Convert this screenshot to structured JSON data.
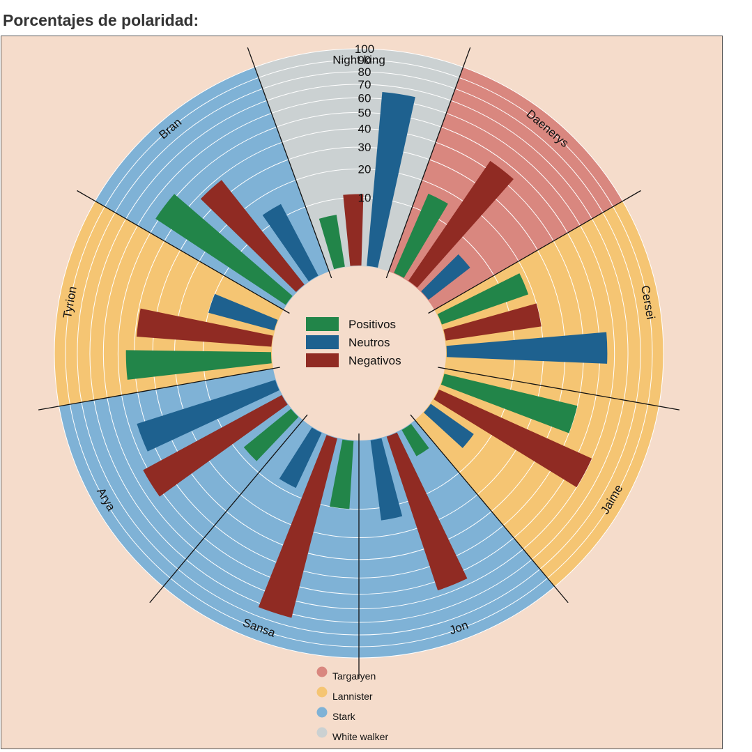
{
  "page_title": "Porcentajes de polaridad:",
  "colors": {
    "background": "#f5dccb",
    "positivos": "#228549",
    "neutros": "#1e618f",
    "negativos": "#902b23",
    "Targaryen": "#d9877f",
    "Lannister": "#f5c573",
    "Stark": "#7fb2d6",
    "White walker": "#cbd1d2"
  },
  "chart_data": {
    "type": "radial-bar",
    "title": "Porcentajes de polaridad:",
    "scale": "sqrt",
    "ylim": [
      0,
      100
    ],
    "ticks": [
      10,
      20,
      30,
      40,
      50,
      60,
      70,
      80,
      90,
      100
    ],
    "series_legend": [
      "Positivos",
      "Neutros",
      "Negativos"
    ],
    "house_legend": [
      "Targaryen",
      "Lannister",
      "Stark",
      "White walker"
    ],
    "characters": [
      {
        "name": "Daenerys",
        "house": "Targaryen",
        "positivos": 16,
        "negativos": 45,
        "neutros": 6
      },
      {
        "name": "Cersei",
        "house": "Lannister",
        "positivos": 18,
        "negativos": 20,
        "neutros": 55
      },
      {
        "name": "Jaime",
        "house": "Lannister",
        "positivos": 40,
        "negativos": 60,
        "neutros": 6
      },
      {
        "name": "Jon",
        "house": "Stark",
        "positivos": 2,
        "negativos": 56,
        "neutros": 14
      },
      {
        "name": "Sansa",
        "house": "Stark",
        "positivos": 10,
        "negativos": 73,
        "neutros": 8
      },
      {
        "name": "Arya",
        "house": "Stark",
        "positivos": 8,
        "negativos": 53,
        "neutros": 45
      },
      {
        "name": "Tyrion",
        "house": "Lannister",
        "positivos": 45,
        "negativos": 39,
        "neutros": 10
      },
      {
        "name": "Bran",
        "house": "Stark",
        "positivos": 52,
        "negativos": 38,
        "neutros": 14
      },
      {
        "name": "Night king",
        "house": "White walker",
        "positivos": 6,
        "negativos": 11,
        "neutros": 65
      }
    ]
  }
}
